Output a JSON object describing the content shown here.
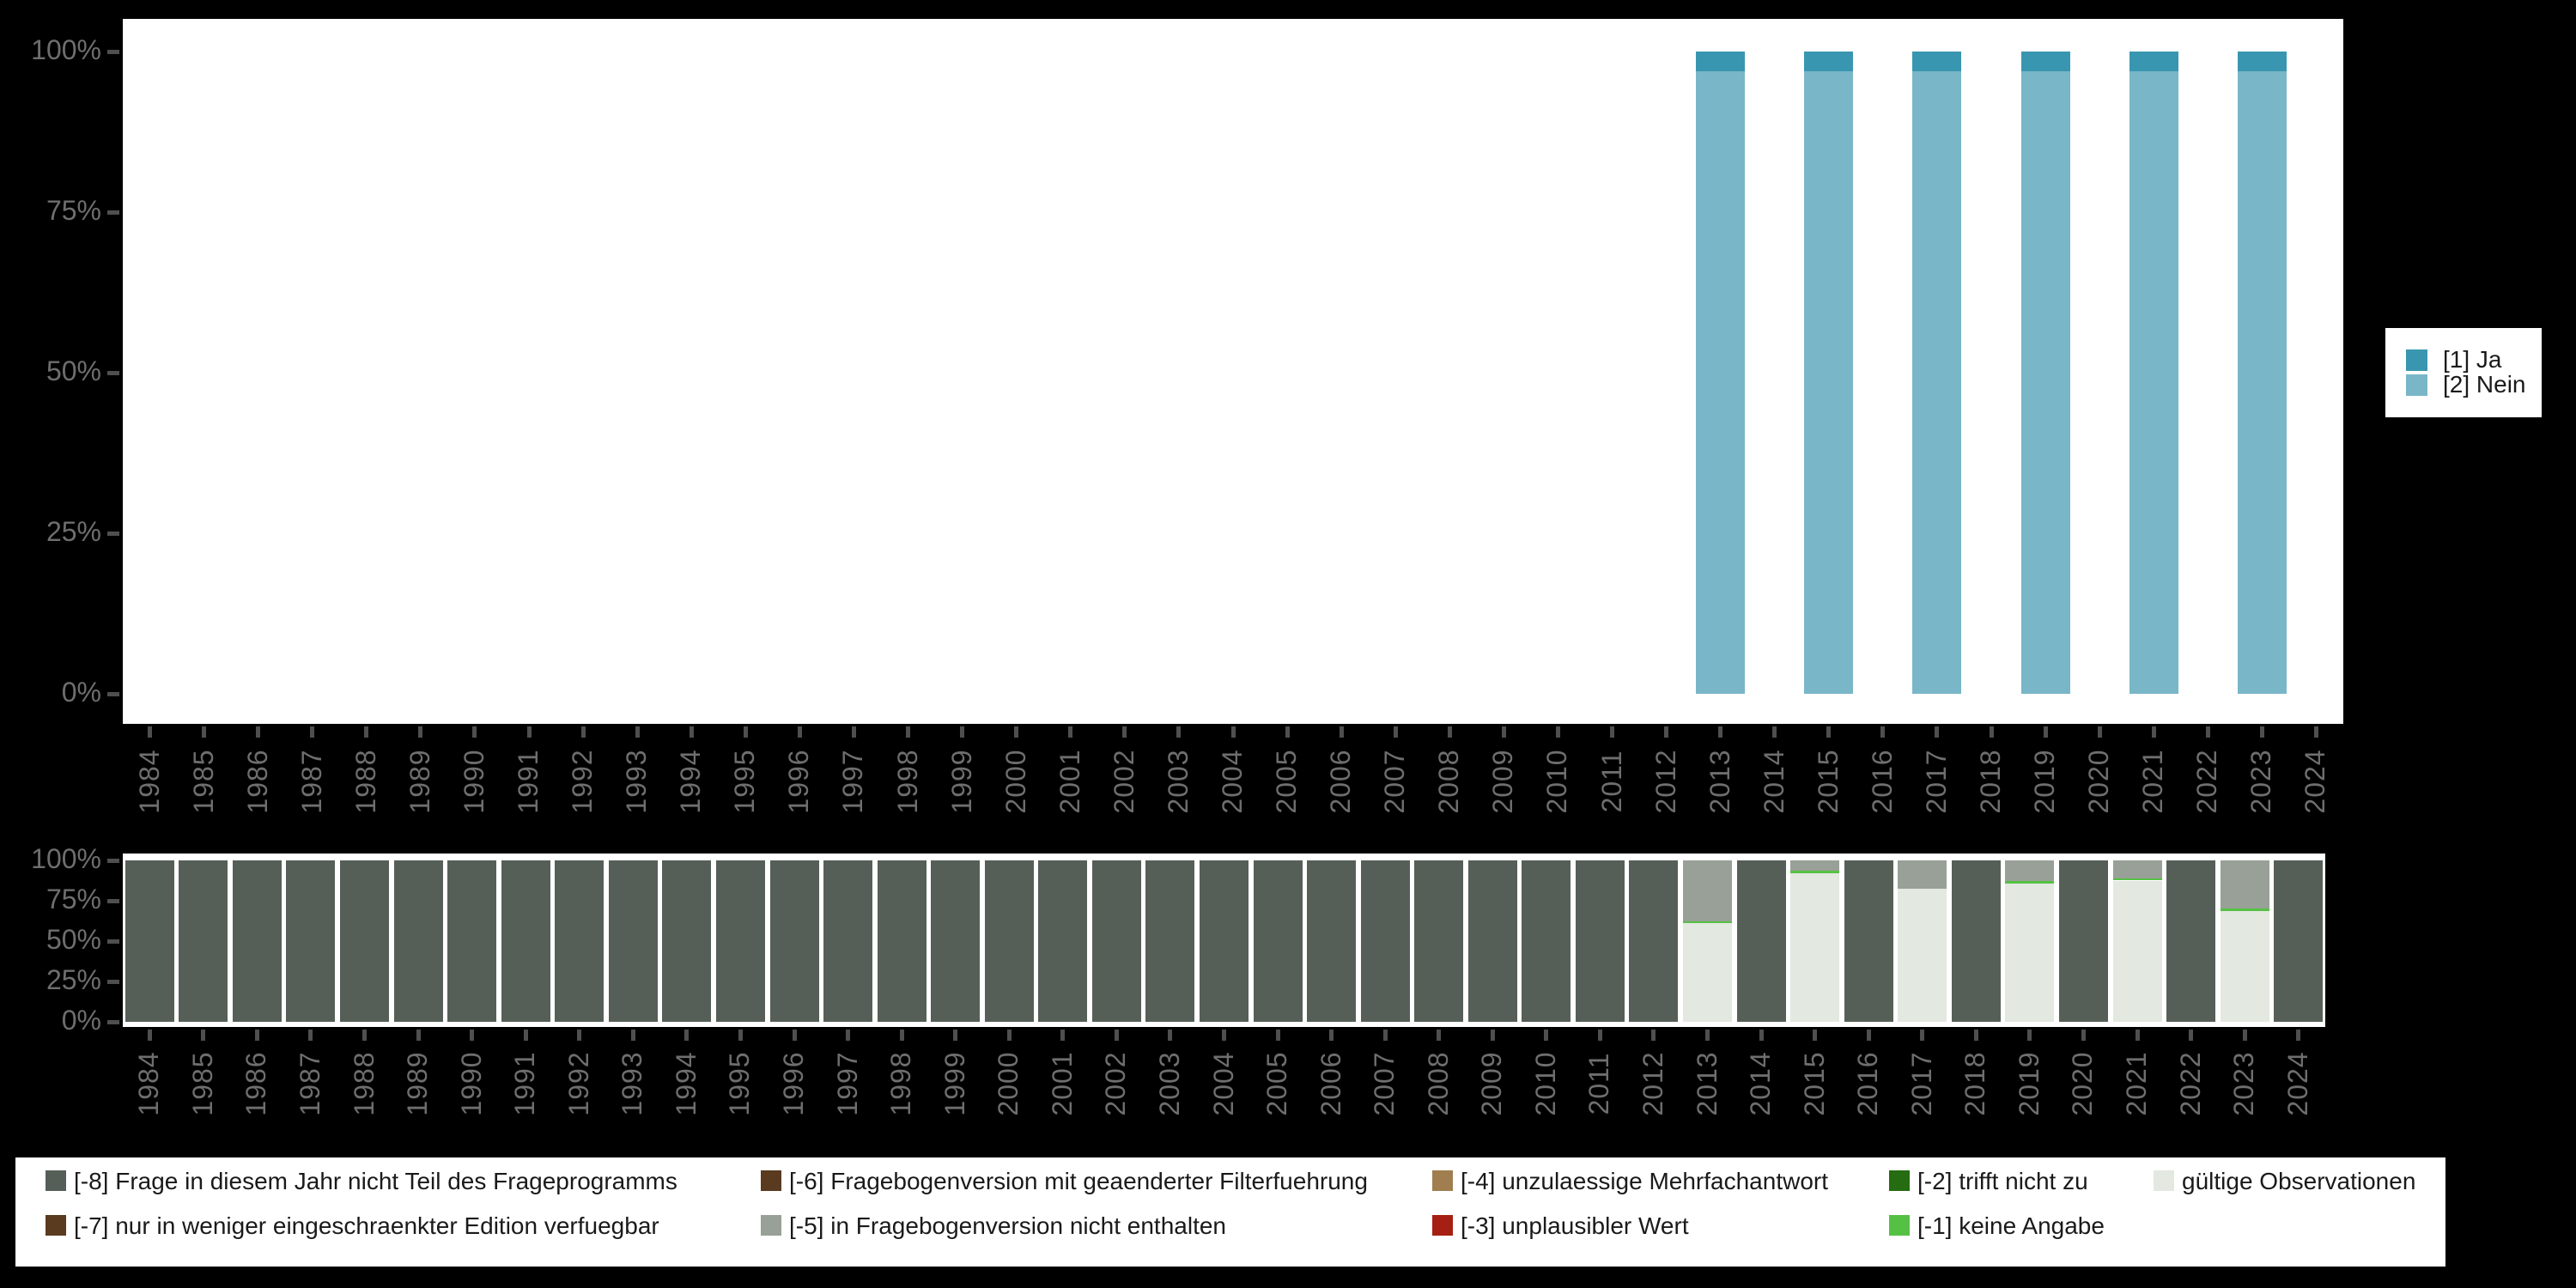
{
  "background": "#000000",
  "panel_color": "#ffffff",
  "axis": {
    "tick_color": "#4f4f4f",
    "label_color": "#6e6e6e"
  },
  "colors": {
    "ja": "#3996b0",
    "nein": "#79b6c8",
    "-8": "#565f57",
    "-7": "#5a3b20",
    "-6": "#5a3b20",
    "-5": "#99a097",
    "-4": "#a17e50",
    "-3": "#a52012",
    "-2": "#266c12",
    "-1": "#55c144",
    "valid": "#e3e8e0"
  },
  "response_legend": {
    "items": [
      {
        "code": "ja",
        "label": "[1] Ja"
      },
      {
        "code": "nein",
        "label": "[2] Nein"
      }
    ]
  },
  "missing_legend": {
    "items": [
      {
        "code": "-8",
        "label": "[-8] Frage in diesem Jahr nicht Teil des Frageprogramms"
      },
      {
        "code": "-7",
        "label": "[-7] nur in weniger eingeschraenkter Edition verfuegbar"
      },
      {
        "code": "-6",
        "label": "[-6] Fragebogenversion mit geaenderter Filterfuehrung"
      },
      {
        "code": "-5",
        "label": "[-5] in Fragebogenversion nicht enthalten"
      },
      {
        "code": "-4",
        "label": "[-4] unzulaessige Mehrfachantwort"
      },
      {
        "code": "-3",
        "label": "[-3] unplausibler Wert"
      },
      {
        "code": "-2",
        "label": "[-2] trifft nicht zu"
      },
      {
        "code": "-1",
        "label": "[-1] keine Angabe"
      },
      {
        "code": "valid",
        "label": "gültige Observationen"
      }
    ]
  },
  "chart_data": [
    {
      "type": "bar",
      "stacked": "percent",
      "title": "",
      "xlabel": "",
      "ylabel": "",
      "ylim": [
        0,
        100
      ],
      "grid": false,
      "legend_position": "right",
      "y_ticks": [
        "100%",
        "75%",
        "50%",
        "25%",
        "0%"
      ],
      "categories": [
        "1984",
        "1985",
        "1986",
        "1987",
        "1988",
        "1989",
        "1990",
        "1991",
        "1992",
        "1993",
        "1994",
        "1995",
        "1996",
        "1997",
        "1998",
        "1999",
        "2000",
        "2001",
        "2002",
        "2003",
        "2004",
        "2005",
        "2006",
        "2007",
        "2008",
        "2009",
        "2010",
        "2011",
        "2012",
        "2013",
        "2014",
        "2015",
        "2016",
        "2017",
        "2018",
        "2019",
        "2020",
        "2021",
        "2022",
        "2023",
        "2024"
      ],
      "bars": [
        {
          "year": "2013",
          "segments": [
            {
              "code": "ja",
              "pct": 3.1
            },
            {
              "code": "nein",
              "pct": 96.9
            }
          ]
        },
        {
          "year": "2015",
          "segments": [
            {
              "code": "ja",
              "pct": 3.1
            },
            {
              "code": "nein",
              "pct": 96.9
            }
          ]
        },
        {
          "year": "2017",
          "segments": [
            {
              "code": "ja",
              "pct": 3.1
            },
            {
              "code": "nein",
              "pct": 96.9
            }
          ]
        },
        {
          "year": "2019",
          "segments": [
            {
              "code": "ja",
              "pct": 3.1
            },
            {
              "code": "nein",
              "pct": 96.9
            }
          ]
        },
        {
          "year": "2021",
          "segments": [
            {
              "code": "ja",
              "pct": 3.1
            },
            {
              "code": "nein",
              "pct": 96.9
            }
          ]
        },
        {
          "year": "2023",
          "segments": [
            {
              "code": "ja",
              "pct": 3.1
            },
            {
              "code": "nein",
              "pct": 96.9
            }
          ]
        }
      ]
    },
    {
      "type": "bar",
      "stacked": "percent",
      "title": "",
      "xlabel": "",
      "ylabel": "",
      "ylim": [
        0,
        100
      ],
      "grid": false,
      "legend_position": "bottom",
      "y_ticks": [
        "100%",
        "75%",
        "50%",
        "25%",
        "0%"
      ],
      "categories": [
        "1984",
        "1985",
        "1986",
        "1987",
        "1988",
        "1989",
        "1990",
        "1991",
        "1992",
        "1993",
        "1994",
        "1995",
        "1996",
        "1997",
        "1998",
        "1999",
        "2000",
        "2001",
        "2002",
        "2003",
        "2004",
        "2005",
        "2006",
        "2007",
        "2008",
        "2009",
        "2010",
        "2011",
        "2012",
        "2013",
        "2014",
        "2015",
        "2016",
        "2017",
        "2018",
        "2019",
        "2020",
        "2021",
        "2022",
        "2023",
        "2024"
      ],
      "bars": [
        {
          "year": "1984",
          "segments": [
            {
              "code": "-8",
              "pct": 100
            }
          ]
        },
        {
          "year": "1985",
          "segments": [
            {
              "code": "-8",
              "pct": 100
            }
          ]
        },
        {
          "year": "1986",
          "segments": [
            {
              "code": "-8",
              "pct": 100
            }
          ]
        },
        {
          "year": "1987",
          "segments": [
            {
              "code": "-8",
              "pct": 100
            }
          ]
        },
        {
          "year": "1988",
          "segments": [
            {
              "code": "-8",
              "pct": 100
            }
          ]
        },
        {
          "year": "1989",
          "segments": [
            {
              "code": "-8",
              "pct": 100
            }
          ]
        },
        {
          "year": "1990",
          "segments": [
            {
              "code": "-8",
              "pct": 100
            }
          ]
        },
        {
          "year": "1991",
          "segments": [
            {
              "code": "-8",
              "pct": 100
            }
          ]
        },
        {
          "year": "1992",
          "segments": [
            {
              "code": "-8",
              "pct": 100
            }
          ]
        },
        {
          "year": "1993",
          "segments": [
            {
              "code": "-8",
              "pct": 100
            }
          ]
        },
        {
          "year": "1994",
          "segments": [
            {
              "code": "-8",
              "pct": 100
            }
          ]
        },
        {
          "year": "1995",
          "segments": [
            {
              "code": "-8",
              "pct": 100
            }
          ]
        },
        {
          "year": "1996",
          "segments": [
            {
              "code": "-8",
              "pct": 100
            }
          ]
        },
        {
          "year": "1997",
          "segments": [
            {
              "code": "-8",
              "pct": 100
            }
          ]
        },
        {
          "year": "1998",
          "segments": [
            {
              "code": "-8",
              "pct": 100
            }
          ]
        },
        {
          "year": "1999",
          "segments": [
            {
              "code": "-8",
              "pct": 100
            }
          ]
        },
        {
          "year": "2000",
          "segments": [
            {
              "code": "-8",
              "pct": 100
            }
          ]
        },
        {
          "year": "2001",
          "segments": [
            {
              "code": "-8",
              "pct": 100
            }
          ]
        },
        {
          "year": "2002",
          "segments": [
            {
              "code": "-8",
              "pct": 100
            }
          ]
        },
        {
          "year": "2003",
          "segments": [
            {
              "code": "-8",
              "pct": 100
            }
          ]
        },
        {
          "year": "2004",
          "segments": [
            {
              "code": "-8",
              "pct": 100
            }
          ]
        },
        {
          "year": "2005",
          "segments": [
            {
              "code": "-8",
              "pct": 100
            }
          ]
        },
        {
          "year": "2006",
          "segments": [
            {
              "code": "-8",
              "pct": 100
            }
          ]
        },
        {
          "year": "2007",
          "segments": [
            {
              "code": "-8",
              "pct": 100
            }
          ]
        },
        {
          "year": "2008",
          "segments": [
            {
              "code": "-8",
              "pct": 100
            }
          ]
        },
        {
          "year": "2009",
          "segments": [
            {
              "code": "-8",
              "pct": 100
            }
          ]
        },
        {
          "year": "2010",
          "segments": [
            {
              "code": "-8",
              "pct": 100
            }
          ]
        },
        {
          "year": "2011",
          "segments": [
            {
              "code": "-8",
              "pct": 100
            }
          ]
        },
        {
          "year": "2012",
          "segments": [
            {
              "code": "-8",
              "pct": 100
            }
          ]
        },
        {
          "year": "2013",
          "segments": [
            {
              "code": "-5",
              "pct": 37.5
            },
            {
              "code": "-1",
              "pct": 1.5
            },
            {
              "code": "valid",
              "pct": 61
            }
          ]
        },
        {
          "year": "2014",
          "segments": [
            {
              "code": "-8",
              "pct": 100
            }
          ]
        },
        {
          "year": "2015",
          "segments": [
            {
              "code": "-5",
              "pct": 6.5
            },
            {
              "code": "-1",
              "pct": 1.5
            },
            {
              "code": "valid",
              "pct": 92
            }
          ]
        },
        {
          "year": "2016",
          "segments": [
            {
              "code": "-8",
              "pct": 100
            }
          ]
        },
        {
          "year": "2017",
          "segments": [
            {
              "code": "-5",
              "pct": 17.5
            },
            {
              "code": "valid",
              "pct": 82.5
            }
          ]
        },
        {
          "year": "2018",
          "segments": [
            {
              "code": "-8",
              "pct": 100
            }
          ]
        },
        {
          "year": "2019",
          "segments": [
            {
              "code": "-5",
              "pct": 13
            },
            {
              "code": "-1",
              "pct": 1.5
            },
            {
              "code": "valid",
              "pct": 85.5
            }
          ]
        },
        {
          "year": "2020",
          "segments": [
            {
              "code": "-8",
              "pct": 100
            }
          ]
        },
        {
          "year": "2021",
          "segments": [
            {
              "code": "-5",
              "pct": 11
            },
            {
              "code": "-1",
              "pct": 1.5
            },
            {
              "code": "valid",
              "pct": 87.5
            }
          ]
        },
        {
          "year": "2022",
          "segments": [
            {
              "code": "-8",
              "pct": 100
            }
          ]
        },
        {
          "year": "2023",
          "segments": [
            {
              "code": "-5",
              "pct": 30
            },
            {
              "code": "-1",
              "pct": 1.5
            },
            {
              "code": "valid",
              "pct": 68.5
            }
          ]
        },
        {
          "year": "2024",
          "segments": [
            {
              "code": "-8",
              "pct": 100
            }
          ]
        }
      ]
    }
  ]
}
